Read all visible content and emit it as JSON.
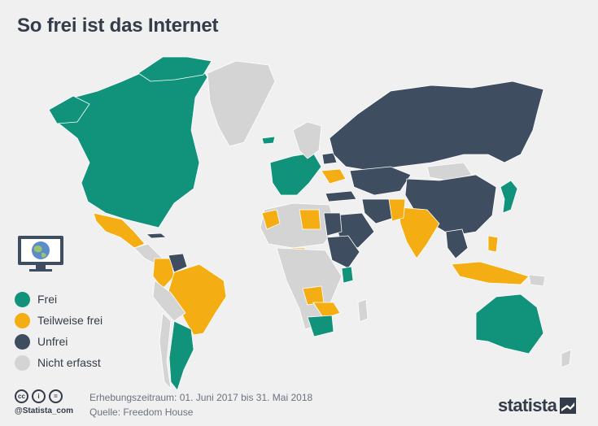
{
  "title": "So frei ist das Internet",
  "colors": {
    "frei": "#10937a",
    "teilweise_frei": "#f5ad14",
    "unfrei": "#3e4e60",
    "nicht_erfasst": "#d4d4d4",
    "background": "#f0f0f0",
    "text": "#333c48"
  },
  "legend": [
    {
      "label": "Frei",
      "color": "#10937a"
    },
    {
      "label": "Teilweise frei",
      "color": "#f5ad14"
    },
    {
      "label": "Unfrei",
      "color": "#3e4e60"
    },
    {
      "label": "Nicht erfasst",
      "color": "#d4d4d4"
    }
  ],
  "icons": {
    "monitor": "monitor-globe-icon",
    "license": [
      "cc-icon",
      "by-icon",
      "equal-icon"
    ]
  },
  "footer": {
    "handle": "@Statista_com",
    "period": "Erhebungszeitraum: 01. Juni 2017 bis 31. Mai 2018",
    "source": "Quelle: Freedom House",
    "brand": "statista"
  }
}
